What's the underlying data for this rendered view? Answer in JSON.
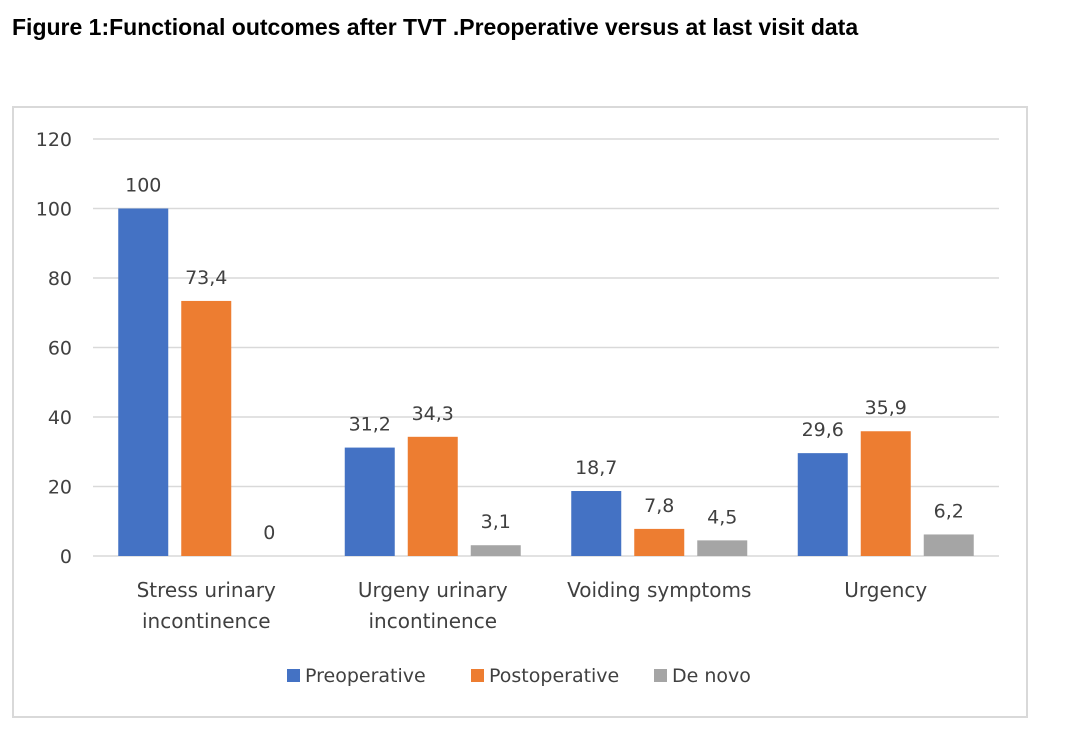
{
  "figure": {
    "title": "Figure 1:Functional outcomes after TVT .Preoperative versus at last visit data"
  },
  "chart_data": {
    "type": "bar",
    "categories": [
      [
        "Stress urinary",
        "incontinence"
      ],
      [
        "Urgeny urinary",
        "incontinence"
      ],
      [
        "Voiding symptoms"
      ],
      [
        "Urgency"
      ]
    ],
    "series": [
      {
        "name": "Preoperative",
        "color": "#4472c4",
        "values": [
          100,
          31.2,
          18.7,
          29.6
        ],
        "labels": [
          "100",
          "31,2",
          "18,7",
          "29,6"
        ]
      },
      {
        "name": "Postoperative",
        "color": "#ed7d31",
        "values": [
          73.4,
          34.3,
          7.8,
          35.9
        ],
        "labels": [
          "73,4",
          "34,3",
          "7,8",
          "35,9"
        ]
      },
      {
        "name": "De novo",
        "color": "#a5a5a5",
        "values": [
          0,
          3.1,
          4.5,
          6.2
        ],
        "labels": [
          "0",
          "3,1",
          "4,5",
          "6,2"
        ]
      }
    ],
    "ylim": [
      0,
      120
    ],
    "yticks": [
      0,
      20,
      40,
      60,
      80,
      100,
      120
    ],
    "grid": true,
    "legend_position": "bottom"
  }
}
